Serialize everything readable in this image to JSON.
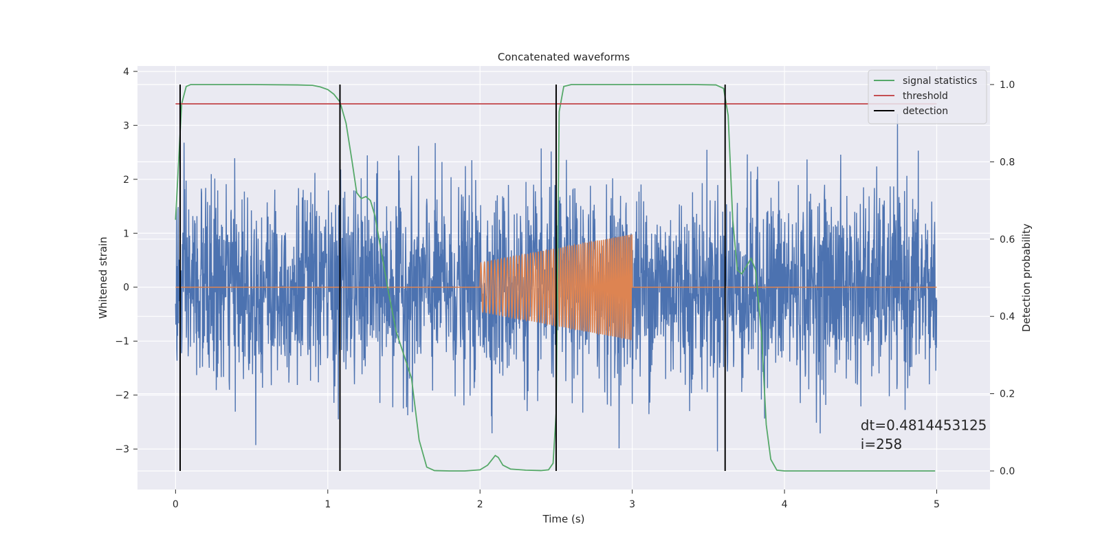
{
  "chart_data": {
    "type": "line",
    "title": "Concatenated waveforms",
    "xlabel": "Time (s)",
    "ylabel": "Whitened strain",
    "y2label": "Detection probability",
    "xlim": [
      -0.25,
      5.35
    ],
    "ylim": [
      -3.75,
      4.1
    ],
    "y2lim": [
      -0.048,
      1.048
    ],
    "xticks": [
      0,
      1,
      2,
      3,
      4,
      5
    ],
    "yticks": [
      -3,
      -2,
      -1,
      0,
      1,
      2,
      3,
      4
    ],
    "y2ticks": [
      0.0,
      0.2,
      0.4,
      0.6,
      0.8,
      1.0
    ],
    "grid": true,
    "legend_position": "top-right",
    "background": "#eaeaf2",
    "series": [
      {
        "name": "",
        "kind": "noise",
        "color": "#4c72b0",
        "x_range": [
          0,
          5
        ],
        "std": 0.9,
        "min": -3.4,
        "max": 3.38
      },
      {
        "name": "",
        "kind": "chirp",
        "color": "#dd8452",
        "x_range": [
          0,
          5
        ],
        "chirp_start": 2.0,
        "chirp_end": 3.0,
        "amp_start": 0.45,
        "amp_end": 0.98,
        "freq_start": 42,
        "freq_end": 85
      },
      {
        "name": "signal statistics",
        "axis": "right",
        "color": "#55a868",
        "x": [
          0,
          0.02,
          0.04,
          0.07,
          0.1,
          0.2,
          0.5,
          0.8,
          0.9,
          0.95,
          1.0,
          1.04,
          1.08,
          1.12,
          1.16,
          1.19,
          1.22,
          1.25,
          1.28,
          1.31,
          1.35,
          1.4,
          1.45,
          1.5,
          1.55,
          1.6,
          1.65,
          1.7,
          1.8,
          1.9,
          2.0,
          2.05,
          2.08,
          2.1,
          2.12,
          2.15,
          2.2,
          2.3,
          2.4,
          2.45,
          2.48,
          2.5,
          2.52,
          2.55,
          2.6,
          3.0,
          3.4,
          3.55,
          3.6,
          3.63,
          3.66,
          3.69,
          3.72,
          3.75,
          3.78,
          3.81,
          3.85,
          3.88,
          3.91,
          3.95,
          4.0,
          4.5,
          4.99
        ],
        "y": [
          0.65,
          0.8,
          0.95,
          0.995,
          1.0,
          1.0,
          1.0,
          0.999,
          0.998,
          0.994,
          0.987,
          0.975,
          0.955,
          0.9,
          0.8,
          0.72,
          0.705,
          0.71,
          0.7,
          0.66,
          0.57,
          0.46,
          0.36,
          0.3,
          0.24,
          0.08,
          0.01,
          0.001,
          0.0,
          0.0,
          0.003,
          0.015,
          0.03,
          0.04,
          0.035,
          0.015,
          0.005,
          0.002,
          0.001,
          0.003,
          0.02,
          0.15,
          0.93,
          0.995,
          1.0,
          1.0,
          1.0,
          0.999,
          0.99,
          0.92,
          0.65,
          0.52,
          0.51,
          0.53,
          0.55,
          0.52,
          0.35,
          0.12,
          0.03,
          0.002,
          0.0,
          0.0,
          0.0
        ]
      },
      {
        "name": "threshold",
        "axis": "right",
        "color": "#c44e52",
        "x": [
          0,
          5
        ],
        "y": [
          0.95,
          0.95
        ]
      },
      {
        "name": "detection",
        "axis": "right",
        "color": "#000000",
        "kind": "vlines",
        "x": [
          0.03,
          1.08,
          2.5,
          3.61
        ],
        "ymin": 0.0,
        "ymax": 1.0
      }
    ],
    "annotations": [
      {
        "text": "dt=0.4814453125",
        "x": 4.5,
        "y": -2.65
      },
      {
        "text": " i=258",
        "x": 4.5,
        "y": -3.0
      }
    ]
  }
}
